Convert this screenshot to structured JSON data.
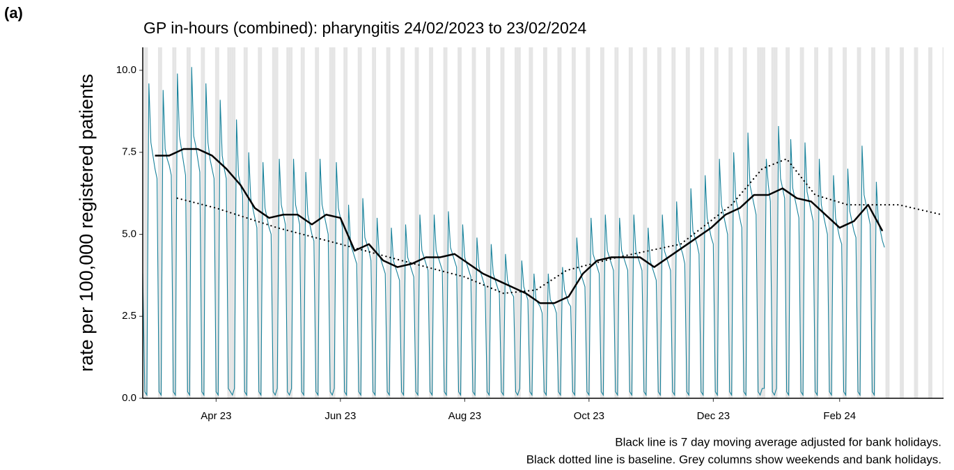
{
  "chart_data": {
    "type": "line",
    "panel_label": "(a)",
    "title": "GP in-hours (combined): pharyngitis 24/02/2023 to 23/02/2024",
    "ylabel": "rate per 100,000 registered patients",
    "notes": [
      "Black line is 7 day moving average adjusted for bank holidays.",
      "Black dotted line is baseline. Grey columns show weekends and bank holidays."
    ],
    "xlim": [
      "2023-02-24",
      "2024-03-23"
    ],
    "xticks": [
      {
        "value": "2023-04-01",
        "label": "Apr 23"
      },
      {
        "value": "2023-06-01",
        "label": "Jun 23"
      },
      {
        "value": "2023-08-01",
        "label": "Aug 23"
      },
      {
        "value": "2023-10-01",
        "label": "Oct 23"
      },
      {
        "value": "2023-12-01",
        "label": "Dec 23"
      },
      {
        "value": "2024-02-01",
        "label": "Feb 24"
      }
    ],
    "ylim": [
      0,
      10.7
    ],
    "yticks": [
      {
        "value": 0,
        "label": "0.0"
      },
      {
        "value": 2.5,
        "label": "2.5"
      },
      {
        "value": 5,
        "label": "5.0"
      },
      {
        "value": 7.5,
        "label": "7.5"
      },
      {
        "value": 10,
        "label": "10.0"
      }
    ],
    "shade_color": "#e5e5e5",
    "holidays": [
      "2023-04-07",
      "2023-04-10",
      "2023-05-01",
      "2023-05-08",
      "2023-05-29",
      "2023-08-28",
      "2023-12-25",
      "2023-12-26",
      "2024-01-01"
    ],
    "series": [
      {
        "color": "#17819a",
        "style": "thin",
        "x": [
          "2023-02-24",
          "2023-02-25",
          "2023-02-26",
          "2023-02-27",
          "2023-02-28",
          "2023-03-01",
          "2023-03-02",
          "2023-03-03",
          "2023-03-04",
          "2023-03-05",
          "2023-03-06",
          "2023-03-07",
          "2023-03-08",
          "2023-03-09",
          "2023-03-10",
          "2023-03-11",
          "2023-03-12",
          "2023-03-13",
          "2023-03-14",
          "2023-03-15",
          "2023-03-16",
          "2023-03-17",
          "2023-03-18",
          "2023-03-19",
          "2023-03-20",
          "2023-03-21",
          "2023-03-22",
          "2023-03-23",
          "2023-03-24",
          "2023-03-25",
          "2023-03-26",
          "2023-03-27",
          "2023-03-28",
          "2023-03-29",
          "2023-03-30",
          "2023-03-31",
          "2023-04-01",
          "2023-04-02",
          "2023-04-03",
          "2023-04-04",
          "2023-04-05",
          "2023-04-06",
          "2023-04-07",
          "2023-04-08",
          "2023-04-09",
          "2023-04-10",
          "2023-04-11",
          "2023-04-12",
          "2023-04-13",
          "2023-04-14",
          "2023-04-15",
          "2023-04-16",
          "2023-04-17",
          "2023-04-18",
          "2023-04-19",
          "2023-04-20",
          "2023-04-21",
          "2023-04-22",
          "2023-04-23",
          "2023-04-24",
          "2023-04-25",
          "2023-04-26",
          "2023-04-27",
          "2023-04-28",
          "2023-04-29",
          "2023-04-30",
          "2023-05-01",
          "2023-05-02",
          "2023-05-03",
          "2023-05-04",
          "2023-05-05",
          "2023-05-06",
          "2023-05-07",
          "2023-05-08",
          "2023-05-09",
          "2023-05-10",
          "2023-05-11",
          "2023-05-12",
          "2023-05-13",
          "2023-05-14",
          "2023-05-15",
          "2023-05-16",
          "2023-05-17",
          "2023-05-18",
          "2023-05-19",
          "2023-05-20",
          "2023-05-21",
          "2023-05-22",
          "2023-05-23",
          "2023-05-24",
          "2023-05-25",
          "2023-05-26",
          "2023-05-27",
          "2023-05-28",
          "2023-05-29",
          "2023-05-30",
          "2023-05-31",
          "2023-06-01",
          "2023-06-02",
          "2023-06-03",
          "2023-06-04",
          "2023-06-05",
          "2023-06-06",
          "2023-06-07",
          "2023-06-08",
          "2023-06-09",
          "2023-06-10",
          "2023-06-11",
          "2023-06-12",
          "2023-06-13",
          "2023-06-14",
          "2023-06-15",
          "2023-06-16",
          "2023-06-17",
          "2023-06-18",
          "2023-06-19",
          "2023-06-20",
          "2023-06-21",
          "2023-06-22",
          "2023-06-23",
          "2023-06-24",
          "2023-06-25",
          "2023-06-26",
          "2023-06-27",
          "2023-06-28",
          "2023-06-29",
          "2023-06-30",
          "2023-07-01",
          "2023-07-02",
          "2023-07-03",
          "2023-07-04",
          "2023-07-05",
          "2023-07-06",
          "2023-07-07",
          "2023-07-08",
          "2023-07-09",
          "2023-07-10",
          "2023-07-11",
          "2023-07-12",
          "2023-07-13",
          "2023-07-14",
          "2023-07-15",
          "2023-07-16",
          "2023-07-17",
          "2023-07-18",
          "2023-07-19",
          "2023-07-20",
          "2023-07-21",
          "2023-07-22",
          "2023-07-23",
          "2023-07-24",
          "2023-07-25",
          "2023-07-26",
          "2023-07-27",
          "2023-07-28",
          "2023-07-29",
          "2023-07-30",
          "2023-07-31",
          "2023-08-01",
          "2023-08-02",
          "2023-08-03",
          "2023-08-04",
          "2023-08-05",
          "2023-08-06",
          "2023-08-07",
          "2023-08-08",
          "2023-08-09",
          "2023-08-10",
          "2023-08-11",
          "2023-08-12",
          "2023-08-13",
          "2023-08-14",
          "2023-08-15",
          "2023-08-16",
          "2023-08-17",
          "2023-08-18",
          "2023-08-19",
          "2023-08-20",
          "2023-08-21",
          "2023-08-22",
          "2023-08-23",
          "2023-08-24",
          "2023-08-25",
          "2023-08-26",
          "2023-08-27",
          "2023-08-28",
          "2023-08-29",
          "2023-08-30",
          "2023-08-31",
          "2023-09-01",
          "2023-09-02",
          "2023-09-03",
          "2023-09-04",
          "2023-09-05",
          "2023-09-06",
          "2023-09-07",
          "2023-09-08",
          "2023-09-09",
          "2023-09-10",
          "2023-09-11",
          "2023-09-12",
          "2023-09-13",
          "2023-09-14",
          "2023-09-15",
          "2023-09-16",
          "2023-09-17",
          "2023-09-18",
          "2023-09-19",
          "2023-09-20",
          "2023-09-21",
          "2023-09-22",
          "2023-09-23",
          "2023-09-24",
          "2023-09-25",
          "2023-09-26",
          "2023-09-27",
          "2023-09-28",
          "2023-09-29",
          "2023-09-30",
          "2023-10-01",
          "2023-10-02",
          "2023-10-03",
          "2023-10-04",
          "2023-10-05",
          "2023-10-06",
          "2023-10-07",
          "2023-10-08",
          "2023-10-09",
          "2023-10-10",
          "2023-10-11",
          "2023-10-12",
          "2023-10-13",
          "2023-10-14",
          "2023-10-15",
          "2023-10-16",
          "2023-10-17",
          "2023-10-18",
          "2023-10-19",
          "2023-10-20",
          "2023-10-21",
          "2023-10-22",
          "2023-10-23",
          "2023-10-24",
          "2023-10-25",
          "2023-10-26",
          "2023-10-27",
          "2023-10-28",
          "2023-10-29",
          "2023-10-30",
          "2023-10-31",
          "2023-11-01",
          "2023-11-02",
          "2023-11-03",
          "2023-11-04",
          "2023-11-05",
          "2023-11-06",
          "2023-11-07",
          "2023-11-08",
          "2023-11-09",
          "2023-11-10",
          "2023-11-11",
          "2023-11-12",
          "2023-11-13",
          "2023-11-14",
          "2023-11-15",
          "2023-11-16",
          "2023-11-17",
          "2023-11-18",
          "2023-11-19",
          "2023-11-20",
          "2023-11-21",
          "2023-11-22",
          "2023-11-23",
          "2023-11-24",
          "2023-11-25",
          "2023-11-26",
          "2023-11-27",
          "2023-11-28",
          "2023-11-29",
          "2023-11-30",
          "2023-12-01",
          "2023-12-02",
          "2023-12-03",
          "2023-12-04",
          "2023-12-05",
          "2023-12-06",
          "2023-12-07",
          "2023-12-08",
          "2023-12-09",
          "2023-12-10",
          "2023-12-11",
          "2023-12-12",
          "2023-12-13",
          "2023-12-14",
          "2023-12-15",
          "2023-12-16",
          "2023-12-17",
          "2023-12-18",
          "2023-12-19",
          "2023-12-20",
          "2023-12-21",
          "2023-12-22",
          "2023-12-23",
          "2023-12-24",
          "2023-12-25",
          "2023-12-26",
          "2023-12-27",
          "2023-12-28",
          "2023-12-29",
          "2023-12-30",
          "2023-12-31",
          "2024-01-01",
          "2024-01-02",
          "2024-01-03",
          "2024-01-04",
          "2024-01-05",
          "2024-01-06",
          "2024-01-07",
          "2024-01-08",
          "2024-01-09",
          "2024-01-10",
          "2024-01-11",
          "2024-01-12",
          "2024-01-13",
          "2024-01-14",
          "2024-01-15",
          "2024-01-16",
          "2024-01-17",
          "2024-01-18",
          "2024-01-19",
          "2024-01-20",
          "2024-01-21",
          "2024-01-22",
          "2024-01-23",
          "2024-01-24",
          "2024-01-25",
          "2024-01-26",
          "2024-01-27",
          "2024-01-28",
          "2024-01-29",
          "2024-01-30",
          "2024-01-31",
          "2024-02-01",
          "2024-02-02",
          "2024-02-03",
          "2024-02-04",
          "2024-02-05",
          "2024-02-06",
          "2024-02-07",
          "2024-02-08",
          "2024-02-09",
          "2024-02-10",
          "2024-02-11",
          "2024-02-12",
          "2024-02-13",
          "2024-02-14",
          "2024-02-15",
          "2024-02-16",
          "2024-02-17",
          "2024-02-18",
          "2024-02-19",
          "2024-02-20",
          "2024-02-21",
          "2024-02-22",
          "2024-02-23"
        ],
        "values": [
          3.8,
          0.2,
          0.1,
          9.6,
          7.8,
          7.4,
          7.0,
          6.7,
          0.2,
          0.1,
          9.4,
          7.6,
          7.3,
          7.1,
          6.8,
          0.2,
          0.1,
          9.9,
          8.0,
          7.6,
          7.2,
          6.8,
          0.2,
          0.1,
          10.1,
          8.0,
          7.7,
          7.3,
          6.9,
          0.2,
          0.1,
          9.6,
          7.8,
          7.3,
          7.0,
          6.7,
          0.2,
          0.1,
          9.1,
          7.4,
          7.0,
          6.7,
          0.3,
          0.2,
          0.1,
          0.3,
          8.5,
          6.8,
          6.5,
          6.2,
          0.2,
          0.1,
          7.5,
          6.1,
          5.8,
          5.5,
          5.2,
          0.2,
          0.1,
          7.2,
          5.8,
          5.5,
          5.2,
          5.0,
          0.2,
          0.1,
          0.3,
          7.3,
          5.9,
          5.6,
          5.3,
          0.2,
          0.1,
          0.3,
          7.3,
          5.9,
          5.6,
          5.3,
          0.2,
          0.1,
          6.9,
          5.6,
          5.3,
          5.0,
          4.8,
          0.2,
          0.1,
          7.3,
          5.9,
          5.6,
          5.3,
          5.0,
          0.2,
          0.1,
          0.3,
          7.2,
          5.8,
          5.5,
          5.2,
          0.2,
          0.1,
          5.9,
          4.7,
          4.5,
          4.3,
          4.1,
          0.2,
          0.1,
          6.1,
          4.9,
          4.7,
          4.5,
          4.2,
          0.2,
          0.1,
          5.5,
          4.4,
          4.2,
          4.0,
          3.8,
          0.2,
          0.1,
          5.2,
          4.2,
          4.0,
          3.8,
          3.6,
          0.2,
          0.1,
          5.3,
          4.3,
          4.1,
          3.9,
          3.7,
          0.2,
          0.1,
          5.6,
          4.5,
          4.3,
          4.1,
          3.9,
          0.2,
          0.1,
          5.6,
          4.5,
          4.3,
          4.1,
          3.9,
          0.2,
          0.1,
          5.7,
          4.6,
          4.4,
          4.2,
          4.0,
          0.2,
          0.1,
          5.3,
          4.3,
          4.1,
          3.9,
          3.7,
          0.2,
          0.1,
          4.9,
          4.0,
          3.8,
          3.6,
          3.4,
          0.2,
          0.1,
          4.7,
          3.8,
          3.6,
          3.4,
          3.2,
          0.2,
          0.1,
          4.4,
          3.6,
          3.4,
          3.2,
          3.1,
          0.2,
          0.1,
          0.3,
          4.2,
          3.4,
          3.2,
          3.0,
          0.2,
          0.1,
          3.8,
          3.0,
          2.9,
          2.8,
          2.6,
          0.2,
          0.1,
          3.8,
          3.0,
          2.9,
          2.8,
          2.6,
          0.2,
          0.1,
          4.0,
          3.3,
          3.1,
          2.9,
          2.8,
          0.2,
          0.1,
          4.9,
          4.0,
          3.8,
          3.6,
          3.4,
          0.2,
          0.1,
          5.5,
          4.4,
          4.2,
          4.0,
          3.8,
          0.2,
          0.1,
          5.6,
          4.5,
          4.3,
          4.1,
          3.9,
          0.2,
          0.1,
          5.5,
          4.5,
          4.3,
          4.1,
          3.9,
          0.2,
          0.1,
          5.6,
          4.5,
          4.3,
          4.1,
          3.9,
          0.2,
          0.1,
          5.2,
          4.2,
          4.0,
          3.8,
          3.6,
          0.2,
          0.1,
          5.6,
          4.5,
          4.3,
          4.1,
          3.9,
          0.2,
          0.1,
          6.0,
          4.8,
          4.6,
          4.4,
          4.1,
          0.2,
          0.1,
          6.4,
          5.1,
          4.9,
          4.7,
          4.4,
          0.2,
          0.1,
          6.8,
          5.5,
          5.2,
          4.9,
          4.7,
          0.2,
          0.1,
          7.3,
          5.9,
          5.6,
          5.3,
          5.0,
          0.2,
          0.1,
          7.5,
          6.1,
          5.8,
          5.5,
          5.2,
          0.2,
          0.1,
          8.1,
          6.5,
          6.2,
          5.9,
          5.6,
          0.2,
          0.1,
          0.3,
          0.3,
          7.3,
          6.5,
          6.0,
          0.2,
          0.1,
          0.3,
          8.3,
          6.7,
          6.4,
          6.1,
          0.2,
          0.1,
          7.9,
          6.4,
          6.1,
          5.8,
          5.5,
          0.2,
          0.1,
          7.8,
          6.3,
          6.0,
          5.7,
          5.4,
          0.2,
          0.1,
          7.3,
          5.9,
          5.6,
          5.3,
          5.0,
          0.2,
          0.1,
          6.8,
          5.5,
          5.2,
          4.9,
          4.7,
          0.2,
          0.1,
          7.0,
          5.7,
          5.4,
          5.1,
          4.9,
          0.2,
          0.1,
          7.7,
          6.2,
          5.9,
          5.6,
          5.3,
          0.2,
          0.1,
          6.6,
          5.4,
          5.1,
          4.8,
          4.6
        ]
      },
      {
        "color": "#000000",
        "style": "thick",
        "x": [
          "2023-03-02",
          "2023-03-09",
          "2023-03-16",
          "2023-03-23",
          "2023-03-30",
          "2023-04-06",
          "2023-04-13",
          "2023-04-20",
          "2023-04-27",
          "2023-05-04",
          "2023-05-11",
          "2023-05-18",
          "2023-05-25",
          "2023-06-01",
          "2023-06-08",
          "2023-06-15",
          "2023-06-22",
          "2023-06-29",
          "2023-07-06",
          "2023-07-13",
          "2023-07-20",
          "2023-07-27",
          "2023-08-03",
          "2023-08-10",
          "2023-08-17",
          "2023-08-24",
          "2023-08-31",
          "2023-09-07",
          "2023-09-14",
          "2023-09-21",
          "2023-09-28",
          "2023-10-05",
          "2023-10-12",
          "2023-10-19",
          "2023-10-26",
          "2023-11-02",
          "2023-11-09",
          "2023-11-16",
          "2023-11-23",
          "2023-11-30",
          "2023-12-07",
          "2023-12-14",
          "2023-12-21",
          "2023-12-28",
          "2024-01-04",
          "2024-01-11",
          "2024-01-18",
          "2024-01-25",
          "2024-02-01",
          "2024-02-08",
          "2024-02-15",
          "2024-02-22"
        ],
        "values": [
          7.4,
          7.4,
          7.6,
          7.6,
          7.4,
          7.0,
          6.5,
          5.8,
          5.5,
          5.6,
          5.6,
          5.3,
          5.6,
          5.5,
          4.5,
          4.7,
          4.2,
          4.0,
          4.1,
          4.3,
          4.3,
          4.4,
          4.1,
          3.8,
          3.6,
          3.4,
          3.2,
          2.9,
          2.9,
          3.1,
          3.8,
          4.2,
          4.3,
          4.3,
          4.3,
          4.0,
          4.3,
          4.6,
          4.9,
          5.2,
          5.6,
          5.8,
          6.2,
          6.2,
          6.4,
          6.1,
          6.0,
          5.6,
          5.2,
          5.4,
          5.9,
          5.1
        ]
      },
      {
        "color": "#000000",
        "style": "dotted",
        "x": [
          "2023-03-13",
          "2023-04-01",
          "2023-05-01",
          "2023-06-01",
          "2023-07-01",
          "2023-08-01",
          "2023-08-20",
          "2023-09-05",
          "2023-09-20",
          "2023-10-15",
          "2023-11-15",
          "2023-12-10",
          "2023-12-25",
          "2024-01-06",
          "2024-01-20",
          "2024-02-05",
          "2024-03-01",
          "2024-03-22"
        ],
        "values": [
          6.1,
          5.8,
          5.2,
          4.7,
          4.2,
          3.7,
          3.2,
          3.3,
          3.9,
          4.3,
          4.7,
          5.9,
          7.0,
          7.3,
          6.2,
          5.9,
          5.9,
          5.6
        ]
      }
    ]
  }
}
